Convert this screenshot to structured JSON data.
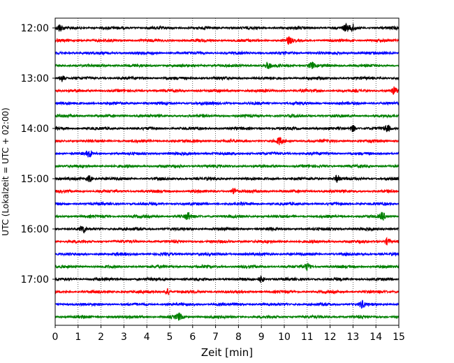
{
  "chart_data": {
    "type": "line",
    "title": "",
    "xlabel": "Zeit  [min]",
    "ylabel": "UTC (Lokalzeit = UTC + 02:00)",
    "xlim": [
      0,
      15
    ],
    "x_ticks": [
      0,
      1,
      2,
      3,
      4,
      5,
      6,
      7,
      8,
      9,
      10,
      11,
      12,
      13,
      14,
      15
    ],
    "y_ticks": [
      "12:00",
      "13:00",
      "14:00",
      "15:00",
      "16:00",
      "17:00"
    ],
    "grid": "vertical dotted",
    "trace_interval_minutes": 15,
    "trace_colors": [
      "#000000",
      "#ff0000",
      "#0000ff",
      "#008000"
    ],
    "traces": [
      {
        "time": "12:00",
        "color": "#000000",
        "burst_minutes": [
          0.2,
          12.7,
          13.0
        ]
      },
      {
        "time": "12:15",
        "color": "#ff0000",
        "burst_minutes": [
          10.2
        ]
      },
      {
        "time": "12:30",
        "color": "#0000ff",
        "burst_minutes": []
      },
      {
        "time": "12:45",
        "color": "#008000",
        "burst_minutes": [
          9.3,
          11.2
        ]
      },
      {
        "time": "13:00",
        "color": "#000000",
        "burst_minutes": [
          0.3
        ]
      },
      {
        "time": "13:15",
        "color": "#ff0000",
        "burst_minutes": [
          14.8
        ]
      },
      {
        "time": "13:30",
        "color": "#0000ff",
        "burst_minutes": []
      },
      {
        "time": "13:45",
        "color": "#008000",
        "burst_minutes": []
      },
      {
        "time": "14:00",
        "color": "#000000",
        "burst_minutes": [
          13.0,
          14.5
        ]
      },
      {
        "time": "14:15",
        "color": "#ff0000",
        "burst_minutes": [
          9.8
        ]
      },
      {
        "time": "14:30",
        "color": "#0000ff",
        "burst_minutes": [
          1.5
        ]
      },
      {
        "time": "14:45",
        "color": "#008000",
        "burst_minutes": []
      },
      {
        "time": "15:00",
        "color": "#000000",
        "burst_minutes": [
          1.5,
          12.3
        ]
      },
      {
        "time": "15:15",
        "color": "#ff0000",
        "burst_minutes": [
          7.8
        ]
      },
      {
        "time": "15:30",
        "color": "#0000ff",
        "burst_minutes": []
      },
      {
        "time": "15:45",
        "color": "#008000",
        "burst_minutes": [
          5.8,
          14.3
        ]
      },
      {
        "time": "16:00",
        "color": "#000000",
        "burst_minutes": [
          1.2
        ]
      },
      {
        "time": "16:15",
        "color": "#ff0000",
        "burst_minutes": [
          14.5
        ]
      },
      {
        "time": "16:30",
        "color": "#0000ff",
        "burst_minutes": []
      },
      {
        "time": "16:45",
        "color": "#008000",
        "burst_minutes": [
          11.0
        ]
      },
      {
        "time": "17:00",
        "color": "#000000",
        "burst_minutes": [
          9.0
        ]
      },
      {
        "time": "17:15",
        "color": "#ff0000",
        "burst_minutes": [
          4.9
        ]
      },
      {
        "time": "17:30",
        "color": "#0000ff",
        "burst_minutes": [
          13.4
        ]
      },
      {
        "time": "17:45",
        "color": "#008000",
        "burst_minutes": [
          5.4
        ]
      }
    ]
  }
}
